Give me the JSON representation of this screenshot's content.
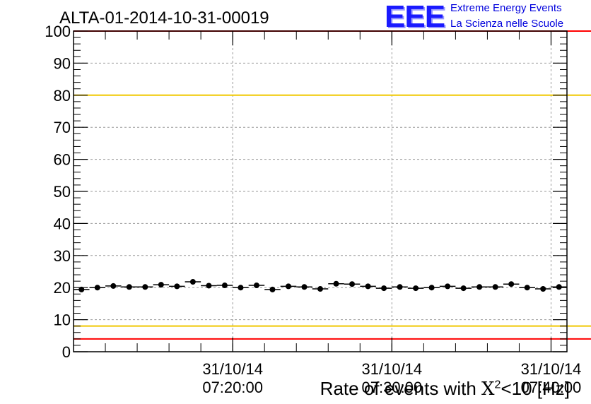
{
  "header": {
    "title": "ALTA-01-2014-10-31-00019",
    "logo_text": "EEE",
    "logo_line1": "Extreme Energy Events",
    "logo_line2": "La Scienza nelle Scuole"
  },
  "axis": {
    "xlabel_prefix": "Rate of events with ",
    "xlabel_symbol": "X",
    "xlabel_sup": "2",
    "xlabel_suffix": "<10 [Hz]"
  },
  "chart_data": {
    "type": "scatter",
    "title": "ALTA-01-2014-10-31-00019",
    "xlabel": "Rate of events with X2<10 [Hz]",
    "ylabel": "",
    "ylim": [
      0,
      100
    ],
    "yticks": [
      "0",
      "10",
      "20",
      "30",
      "40",
      "50",
      "60",
      "70",
      "80",
      "90",
      "100"
    ],
    "xlim": [
      "31/10/14 07:10:00",
      "31/10/14 07:41:00"
    ],
    "xticks": [
      {
        "date": "31/10/14",
        "time": "07:20:00"
      },
      {
        "date": "31/10/14",
        "time": "07:30:00"
      },
      {
        "date": "31/10/14",
        "time": "07:40:00"
      }
    ],
    "grid": true,
    "reference_lines": [
      {
        "value": 80,
        "color": "#f0c800"
      },
      {
        "value": 8,
        "color": "#f0c800"
      },
      {
        "value": 100,
        "color": "#ff0000"
      },
      {
        "value": 4,
        "color": "#ff0000"
      }
    ],
    "series": [
      {
        "color": "#000000",
        "x": [
          "07:10:30",
          "07:11:30",
          "07:12:30",
          "07:13:30",
          "07:14:30",
          "07:15:30",
          "07:16:30",
          "07:17:30",
          "07:18:30",
          "07:19:30",
          "07:20:30",
          "07:21:30",
          "07:22:30",
          "07:23:30",
          "07:24:30",
          "07:25:30",
          "07:26:30",
          "07:27:30",
          "07:28:30",
          "07:29:30",
          "07:30:30",
          "07:31:30",
          "07:32:30",
          "07:33:30",
          "07:34:30",
          "07:35:30",
          "07:36:30",
          "07:37:30",
          "07:38:30",
          "07:39:30",
          "07:40:30"
        ],
        "values": [
          19.4,
          20.0,
          20.5,
          20.2,
          20.2,
          20.9,
          20.4,
          21.8,
          20.6,
          20.7,
          20.0,
          20.7,
          19.4,
          20.4,
          20.2,
          19.6,
          21.2,
          21.1,
          20.4,
          19.8,
          20.2,
          19.8,
          20.0,
          20.4,
          19.8,
          20.2,
          20.2,
          21.1,
          20.0,
          19.6,
          20.2
        ]
      }
    ]
  }
}
